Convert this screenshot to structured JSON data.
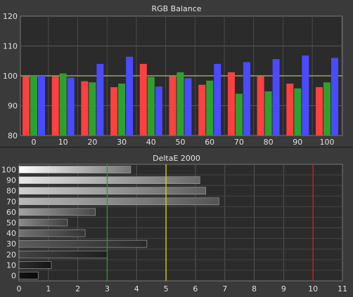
{
  "chart_data": [
    {
      "type": "bar",
      "title": "RGB Balance",
      "categories": [
        "0",
        "10",
        "20",
        "30",
        "40",
        "50",
        "60",
        "70",
        "80",
        "90",
        "100"
      ],
      "series": [
        {
          "color": "#ff4040",
          "values": [
            99.8,
            99.8,
            98.2,
            96.2,
            104.0,
            99.8,
            97.0,
            101.2,
            99.8,
            97.4,
            96.2
          ]
        },
        {
          "color": "#2ea02e",
          "values": [
            100.0,
            100.8,
            97.8,
            97.4,
            99.6,
            101.2,
            98.4,
            94.0,
            94.8,
            95.8,
            97.8
          ]
        },
        {
          "color": "#4a4aff",
          "values": [
            100.0,
            99.4,
            104.0,
            106.4,
            96.4,
            99.2,
            104.0,
            104.6,
            105.6,
            106.8,
            106.0
          ]
        }
      ],
      "ylim": [
        80,
        120
      ],
      "yticks": [
        "80",
        "90",
        "100",
        "110",
        "120"
      ],
      "reference_line": 100,
      "grid": true,
      "background_color": "#2b2b2b"
    },
    {
      "type": "bar",
      "orientation": "horizontal",
      "title": "DeltaE 2000",
      "categories": [
        "0",
        "10",
        "20",
        "30",
        "40",
        "50",
        "60",
        "70",
        "80",
        "90",
        "100"
      ],
      "values": [
        0.65,
        1.1,
        3.0,
        4.35,
        2.25,
        1.65,
        2.6,
        6.8,
        6.35,
        6.15,
        3.8
      ],
      "xlim": [
        0,
        11
      ],
      "xticks": [
        "0",
        "1",
        "2",
        "3",
        "4",
        "5",
        "6",
        "7",
        "8",
        "9",
        "10",
        "11"
      ],
      "threshold_lines": [
        {
          "value": 3,
          "color": "#2e9a2e"
        },
        {
          "value": 5,
          "color": "#d8d800"
        },
        {
          "value": 10,
          "color": "#d02020"
        }
      ],
      "grid": true,
      "background_color": "#2b2b2b"
    }
  ]
}
